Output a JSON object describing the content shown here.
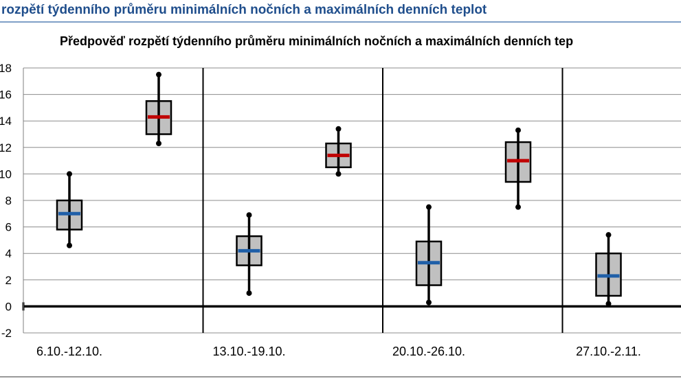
{
  "page_heading": "rozpětí týdenního průměru minimálních nočních a maximálních denních teplot",
  "chart_data": {
    "type": "boxplot",
    "title": "Předpověď rozpětí týdenního průměru minimálních nočních a maximálních denních tep",
    "xlabel": "",
    "ylabel": "",
    "ylim": [
      -2,
      18
    ],
    "yticks": [
      -2,
      0,
      2,
      4,
      6,
      8,
      10,
      12,
      14,
      16,
      18
    ],
    "grid": true,
    "categories": [
      "6.10.-12.10.",
      "13.10.-19.10.",
      "20.10.-26.10.",
      "27.10.-2.11."
    ],
    "colors": {
      "night_median": "#1f5fa8",
      "day_median": "#c00000",
      "box_fill": "#c0c0c0"
    },
    "series": [
      {
        "boxes": [
          {
            "min": 4.6,
            "q1": 5.8,
            "median": 7.0,
            "q3": 8.0,
            "max": 10.0
          },
          {
            "min": 1.0,
            "q1": 3.1,
            "median": 4.2,
            "q3": 5.3,
            "max": 6.9
          },
          {
            "min": 0.3,
            "q1": 1.6,
            "median": 3.3,
            "q3": 4.9,
            "max": 7.5
          },
          {
            "min": 0.2,
            "q1": 0.8,
            "median": 2.3,
            "q3": 4.0,
            "max": 5.4
          }
        ]
      },
      {
        "boxes": [
          {
            "min": 12.3,
            "q1": 13.0,
            "median": 14.3,
            "q3": 15.5,
            "max": 17.5
          },
          {
            "min": 10.0,
            "q1": 10.5,
            "median": 11.4,
            "q3": 12.3,
            "max": 13.4
          },
          {
            "min": 7.5,
            "q1": 9.4,
            "median": 11.0,
            "q3": 12.4,
            "max": 13.3
          },
          null
        ]
      }
    ]
  }
}
